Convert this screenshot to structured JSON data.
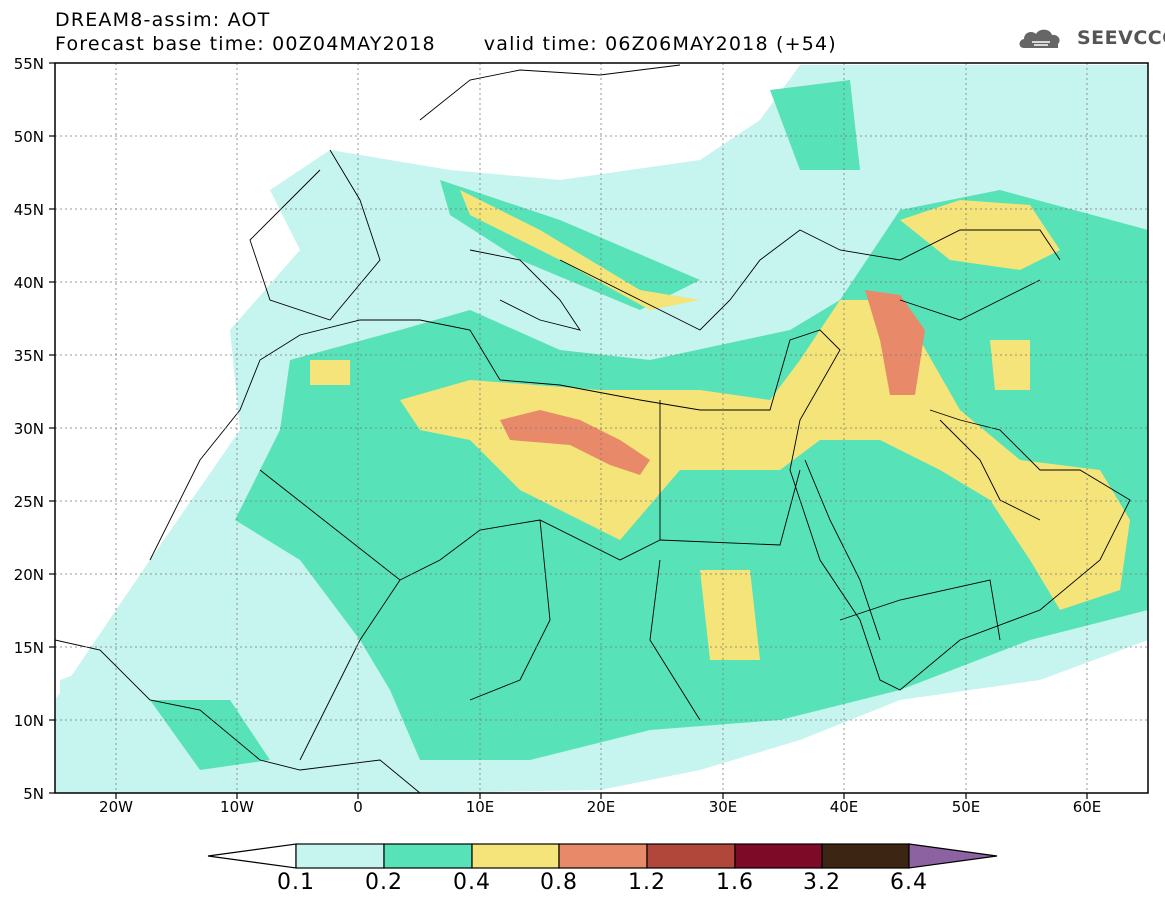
{
  "header": {
    "title": "DREAM8-assim: AOT",
    "base_time": "Forecast base time: 00Z04MAY2018",
    "valid_time": "valid time: 06Z06MAY2018 (+54)"
  },
  "logo": {
    "text": "SEEVCCC",
    "icon": "cloud-icon"
  },
  "axes": {
    "lat_labels": [
      "55N",
      "50N",
      "45N",
      "40N",
      "35N",
      "30N",
      "25N",
      "20N",
      "15N",
      "10N",
      "5N"
    ],
    "lon_labels": [
      "20W",
      "10W",
      "0",
      "10E",
      "20E",
      "30E",
      "40E",
      "50E",
      "60E"
    ]
  },
  "colorbar": {
    "labels": [
      "0.1",
      "0.2",
      "0.4",
      "0.8",
      "1.2",
      "1.6",
      "3.2",
      "6.4"
    ],
    "colors": [
      "#ffffff",
      "#c6f4ee",
      "#58e2b8",
      "#f4e47a",
      "#e8896a",
      "#b0473a",
      "#7d0a26",
      "#3d2513",
      "#8c63a0"
    ]
  },
  "map_extent": {
    "lon": [
      -25,
      65
    ],
    "lat": [
      5,
      55
    ]
  }
}
